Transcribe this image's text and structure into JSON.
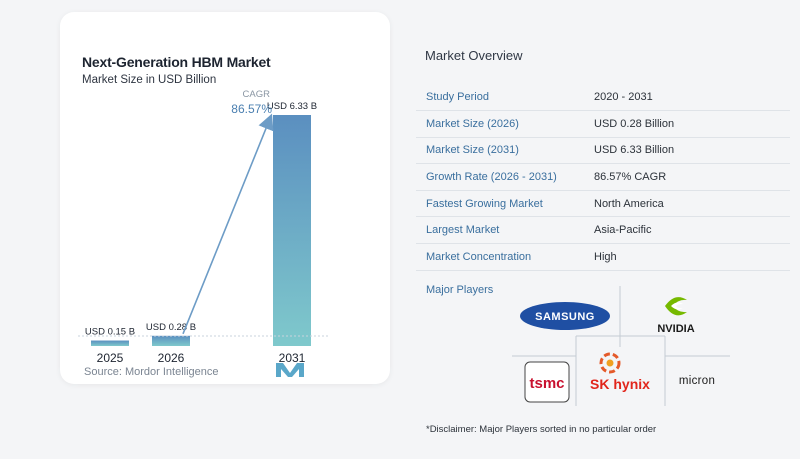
{
  "chart_data": {
    "type": "bar",
    "title": "Next-Generation HBM Market",
    "subtitle": "Market Size in USD Billion",
    "categories": [
      "2025",
      "2026",
      "2031"
    ],
    "values": [
      0.15,
      0.28,
      6.33
    ],
    "data_labels": [
      "USD 0.15 B",
      "USD 0.28 B",
      "USD 6.33 B"
    ],
    "cagr_label": "CAGR",
    "cagr_value": "86.57%",
    "colors": {
      "bar_top": "#5b8fc0",
      "bar_bottom": "#7fc9cc",
      "arrow": "#6d9cc6"
    }
  },
  "source": "Source: Mordor Intelligence",
  "overview": {
    "title": "Market Overview",
    "rows": [
      {
        "key": "Study Period",
        "value": "2020 - 2031"
      },
      {
        "key": "Market Size (2026)",
        "value": "USD 0.28 Billion"
      },
      {
        "key": "Market Size (2031)",
        "value": "USD 6.33 Billion"
      },
      {
        "key": "Growth Rate (2026 - 2031)",
        "value": "86.57% CAGR"
      },
      {
        "key": "Fastest Growing Market",
        "value": "North America"
      },
      {
        "key": "Largest Market",
        "value": "Asia-Pacific"
      },
      {
        "key": "Market Concentration",
        "value": "High"
      }
    ]
  },
  "players": {
    "label": "Major Players",
    "names": [
      "SAMSUNG",
      "NVIDIA",
      "tsmc",
      "SK hynix",
      "micron"
    ]
  },
  "disclaimer": "*Disclaimer: Major Players sorted in no particular order"
}
